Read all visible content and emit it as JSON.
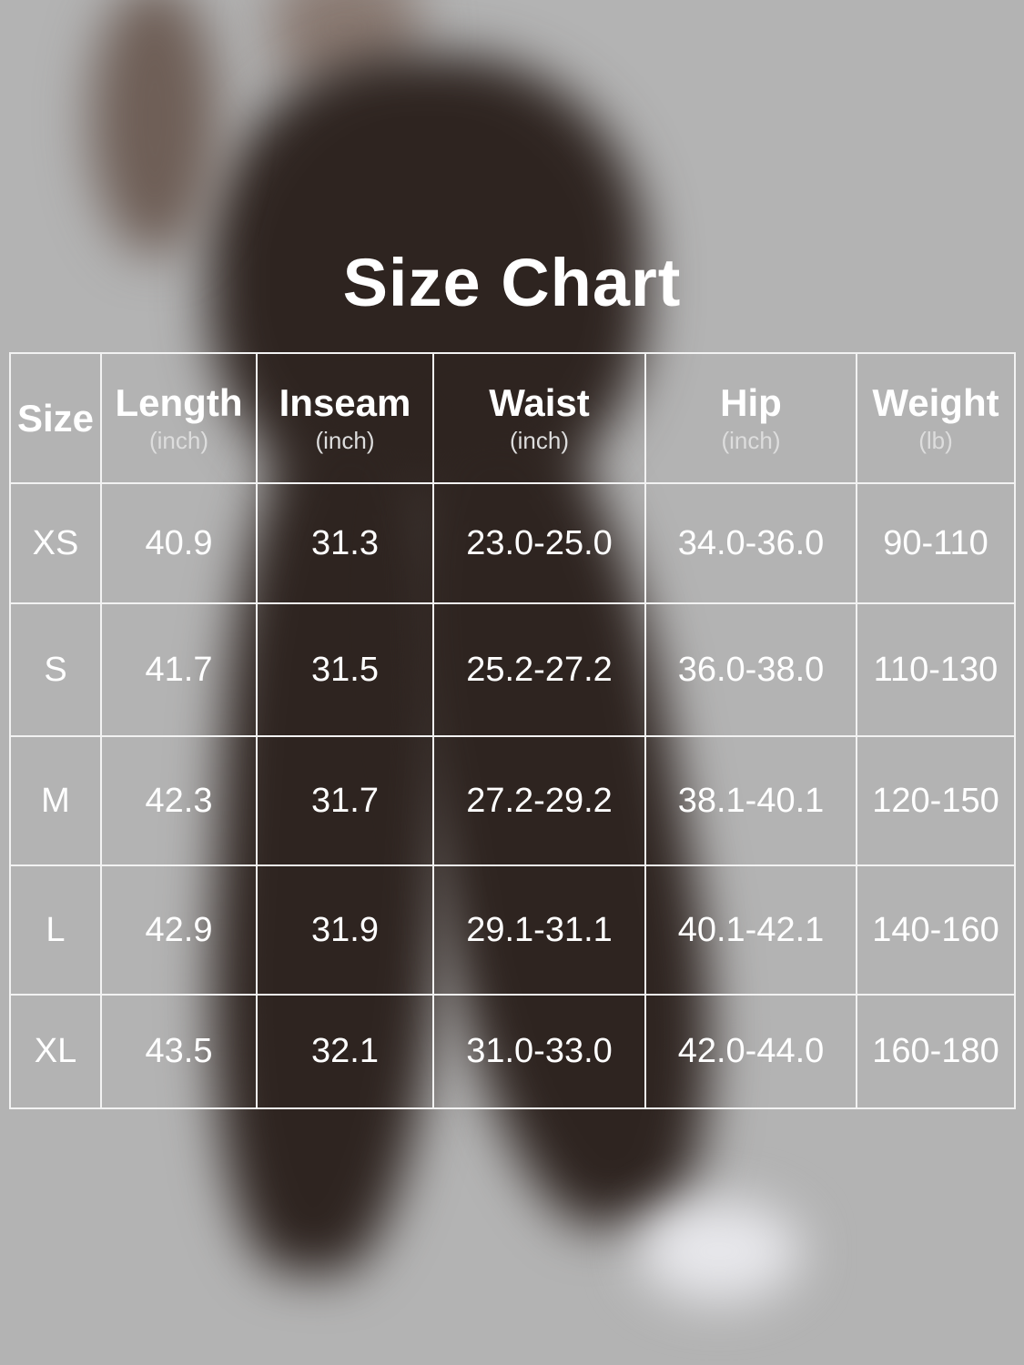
{
  "title": "Size Chart",
  "columns": [
    {
      "label": "Size",
      "unit": ""
    },
    {
      "label": "Length",
      "unit": "(inch)"
    },
    {
      "label": "Inseam",
      "unit": "(inch)"
    },
    {
      "label": "Waist",
      "unit": "(inch)"
    },
    {
      "label": "Hip",
      "unit": "(inch)"
    },
    {
      "label": "Weight",
      "unit": "(lb)"
    }
  ],
  "rows": [
    [
      "XS",
      "40.9",
      "31.3",
      "23.0-25.0",
      "34.0-36.0",
      "90-110"
    ],
    [
      "S",
      "41.7",
      "31.5",
      "25.2-27.2",
      "36.0-38.0",
      "110-130"
    ],
    [
      "M",
      "42.3",
      "31.7",
      "27.2-29.2",
      "38.1-40.1",
      "120-150"
    ],
    [
      "L",
      "42.9",
      "31.9",
      "29.1-31.1",
      "40.1-42.1",
      "140-160"
    ],
    [
      "XL",
      "43.5",
      "32.1",
      "31.0-33.0",
      "42.0-44.0",
      "160-180"
    ]
  ],
  "colors": {
    "background": "#b3b3b3",
    "garment": "#2e2420",
    "text": "#ffffff"
  }
}
